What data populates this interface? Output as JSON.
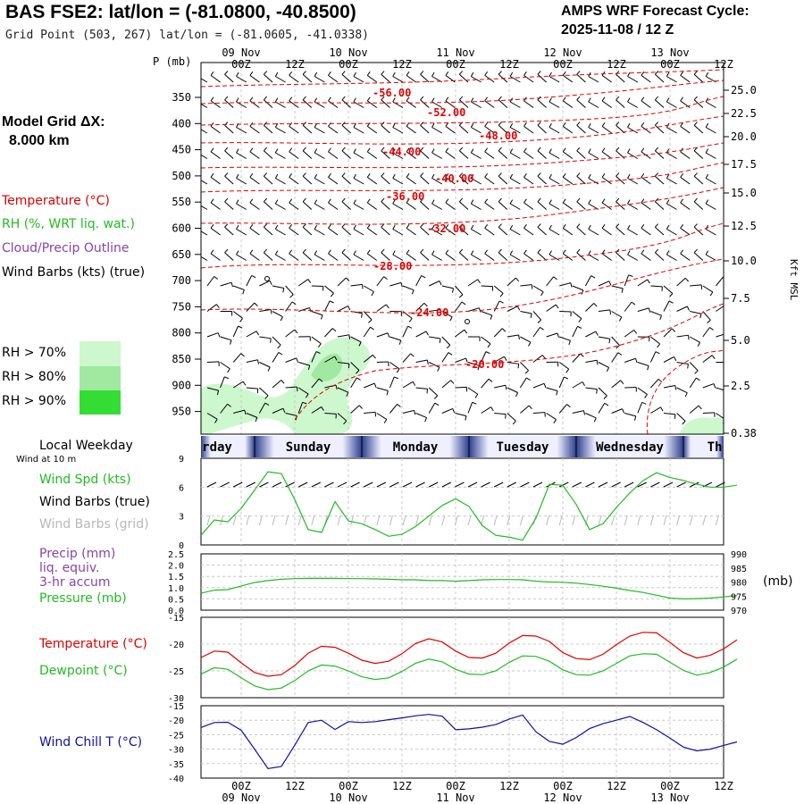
{
  "header": {
    "station": "BAS FSE2:  lat/lon = (-81.0800, -40.8500)",
    "grid_point": "Grid Point (503, 267) lat/lon = (-81.0605, -41.0338)",
    "cycle_line1": "AMPS WRF Forecast Cycle:",
    "cycle_line2": "2025-11-08 / 12  Z"
  },
  "model": {
    "label": "Model Grid ΔX:",
    "value": "8.000 km"
  },
  "legend": {
    "temperature": "Temperature (°C)",
    "rh": "RH (%, WRT liq. wat.)",
    "cloud": "Cloud/Precip Outline",
    "wind": "Wind Barbs (kts) (true)",
    "rh70": "RH > 70%",
    "rh80": "RH > 80%",
    "rh90": "RH > 90%"
  },
  "colors": {
    "rh70": "#cdf7cd",
    "rh80": "#a1e8a1",
    "rh90": "#33dd33",
    "temp": "#e00000",
    "green": "#22bb22",
    "purple": "#8844aa",
    "blue": "#1010a0",
    "grey": "#b8b8b8",
    "weekday_dark": "#2d3f8f",
    "weekday_light": "#eef0ff"
  },
  "time_axis": {
    "top_dates": [
      "09 Nov",
      "10 Nov",
      "11 Nov",
      "12 Nov",
      "13 Nov"
    ],
    "hour_labels": [
      "00Z",
      "12Z",
      "00Z",
      "12Z",
      "00Z",
      "12Z",
      "00Z",
      "12Z",
      "00Z",
      "12Z"
    ],
    "bottom_dates": [
      "09 Nov",
      "10 Nov",
      "11 Nov",
      "12 Nov",
      "13 Nov"
    ]
  },
  "upper_panel": {
    "left_unit": "P (mb)",
    "right_unit": "Kft MSL",
    "pressure_levels": [
      "350",
      "400",
      "450",
      "500",
      "550",
      "600",
      "650",
      "700",
      "750",
      "800",
      "850",
      "900",
      "950"
    ],
    "height_levels": [
      "25.0",
      "22.5",
      "20.0",
      "17.5",
      "15.0",
      "12.5",
      "10.0",
      "7.5",
      "5.0",
      "2.5",
      "0.38"
    ],
    "temp_labels": [
      "-56.00",
      "-52.00",
      "-48.00",
      "-44.00",
      "-40.00",
      "-36.00",
      "-32.00",
      "-28.00",
      "-24.00",
      "-20.00"
    ]
  },
  "weekday_strip": {
    "label": "Local Weekday",
    "days": [
      "rday",
      "Sunday",
      "Monday",
      "Tuesday",
      "Wednesday",
      "Th"
    ]
  },
  "wind_panel": {
    "sublabel": "Wind at 10 m",
    "spd_label": "Wind Spd (kts)",
    "barbs_true": "Wind Barbs (true)",
    "barbs_grid": "Wind Barbs (grid)",
    "y_ticks": [
      "9",
      "6",
      "3",
      "0"
    ]
  },
  "precip_panel": {
    "precip_label": "Precip (mm)",
    "liq": "liq. equiv.",
    "accum": "3-hr accum",
    "pressure_label": "Pressure (mb)",
    "units": "(mb)",
    "left_ticks": [
      "2.5",
      "2.0",
      "1.5",
      "1.0",
      "0.5",
      "0.0"
    ],
    "right_ticks": [
      "990",
      "985",
      "980",
      "975",
      "970"
    ]
  },
  "temp_panel": {
    "temp_label": "Temperature (°C)",
    "dew_label": "Dewpoint (°C)",
    "y_ticks": [
      "-15",
      "-20",
      "-25",
      "-30"
    ]
  },
  "chill_panel": {
    "label": "Wind Chill T (°C)",
    "y_ticks": [
      "-15",
      "-20",
      "-25",
      "-30",
      "-35",
      "-40"
    ]
  },
  "chart_data": [
    {
      "type": "line",
      "title": "Wind Spd (kts) at 10 m",
      "x_unit": "forecast hour from 2025-11-08 12Z",
      "x": [
        0,
        3,
        6,
        9,
        12,
        15,
        18,
        21,
        24,
        27,
        30,
        33,
        36,
        39,
        42,
        45,
        48,
        51,
        54,
        57,
        60,
        63,
        66,
        69,
        72,
        75,
        78,
        81,
        84,
        87,
        90,
        93,
        96,
        99,
        102,
        105,
        108,
        111,
        114,
        117,
        120
      ],
      "ylim": [
        0,
        9
      ],
      "series": [
        {
          "name": "Wind Spd (kts)",
          "values": [
            1.0,
            2.6,
            2.4,
            3.8,
            5.7,
            7.6,
            7.4,
            4.7,
            1.6,
            1.3,
            4.5,
            2.5,
            2.2,
            1.6,
            0.9,
            1.1,
            1.9,
            3.0,
            4.1,
            4.8,
            4.0,
            2.0,
            1.0,
            0.8,
            0.5,
            2.8,
            6.3,
            6.2,
            4.2,
            1.6,
            2.2,
            3.9,
            5.4,
            6.7,
            7.5,
            7.0,
            6.7,
            6.3,
            6.0,
            6.0,
            6.2
          ]
        }
      ]
    },
    {
      "type": "line",
      "title": "Pressure (mb)",
      "ylim_right": [
        970,
        990
      ],
      "ylim_left_precip": [
        0.0,
        2.5
      ],
      "series": [
        {
          "name": "Pressure (mb)",
          "values": [
            976.0,
            977.1,
            977.3,
            978.6,
            979.8,
            980.5,
            981.0,
            981.2,
            981.3,
            981.3,
            981.3,
            981.2,
            981.2,
            981.1,
            981.0,
            980.8,
            980.8,
            980.5,
            980.5,
            980.3,
            980.5,
            980.8,
            980.9,
            980.9,
            980.8,
            980.3,
            980.0,
            979.9,
            979.6,
            979.1,
            978.5,
            977.8,
            977.0,
            976.3,
            975.3,
            974.3,
            974.0,
            974.1,
            974.3,
            974.7,
            975.2
          ]
        }
      ]
    },
    {
      "type": "line",
      "title": "Temperature / Dewpoint (°C)",
      "ylim": [
        -30,
        -15
      ],
      "series": [
        {
          "name": "Temperature (°C)",
          "values": [
            -22.5,
            -21.3,
            -21.5,
            -23.5,
            -25.3,
            -26.0,
            -25.7,
            -24.0,
            -21.7,
            -20.4,
            -20.6,
            -21.7,
            -23.0,
            -23.6,
            -23.2,
            -21.8,
            -19.9,
            -19.0,
            -19.6,
            -21.3,
            -22.5,
            -22.6,
            -21.7,
            -19.8,
            -18.4,
            -18.5,
            -19.5,
            -21.6,
            -22.7,
            -22.9,
            -21.9,
            -20.1,
            -18.5,
            -17.8,
            -17.9,
            -19.7,
            -21.6,
            -22.6,
            -22.1,
            -20.9,
            -19.2
          ]
        },
        {
          "name": "Dewpoint (°C)",
          "values": [
            -25.6,
            -24.4,
            -24.7,
            -26.3,
            -27.8,
            -28.5,
            -28.2,
            -26.8,
            -25.0,
            -23.9,
            -24.1,
            -25.0,
            -26.1,
            -26.6,
            -26.3,
            -25.1,
            -23.6,
            -22.8,
            -23.3,
            -24.7,
            -25.6,
            -25.7,
            -25.0,
            -23.4,
            -22.2,
            -22.3,
            -23.2,
            -24.8,
            -25.7,
            -25.8,
            -25.0,
            -23.6,
            -22.2,
            -21.8,
            -21.9,
            -23.4,
            -24.9,
            -25.8,
            -25.3,
            -24.3,
            -22.8
          ]
        }
      ]
    },
    {
      "type": "line",
      "title": "Wind Chill T (°C)",
      "ylim": [
        -40,
        -15
      ],
      "series": [
        {
          "name": "Wind Chill T (°C)",
          "values": [
            -22.5,
            -20.8,
            -20.7,
            -23.5,
            -30.0,
            -36.7,
            -36.0,
            -28.6,
            -20.8,
            -20.0,
            -23.2,
            -20.5,
            -20.8,
            -20.5,
            -19.8,
            -19.2,
            -18.5,
            -18.0,
            -18.6,
            -23.3,
            -23.0,
            -22.4,
            -21.5,
            -19.6,
            -18.2,
            -24.0,
            -27.3,
            -28.3,
            -26.0,
            -22.9,
            -21.2,
            -20.0,
            -18.7,
            -20.8,
            -23.3,
            -26.2,
            -29.3,
            -30.6,
            -30.0,
            -28.7,
            -27.5
          ]
        }
      ]
    }
  ]
}
